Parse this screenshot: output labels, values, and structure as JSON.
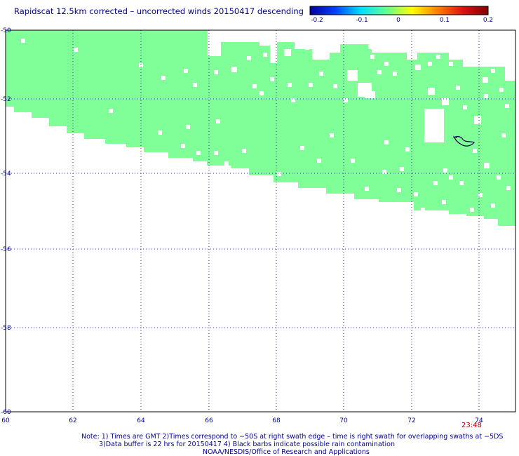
{
  "title": "Rapidscat 12.5km corrected – uncorrected winds 20150417 descending",
  "colorbar": {
    "ticks": [
      "-0.2",
      "-0.1",
      "0",
      "0.1",
      "0.2"
    ],
    "stops": [
      "#0000a0",
      "#0040ff",
      "#00e0ff",
      "#60ff90",
      "#ffff00",
      "#ff8000",
      "#e01010",
      "#800000"
    ]
  },
  "lat_labels": [
    "-50",
    "-52",
    "-54",
    "-56",
    "-58",
    "-60"
  ],
  "lon_labels": [
    "60",
    "62",
    "64",
    "66",
    "68",
    "70",
    "72",
    "74"
  ],
  "swath_color": "#80ff98",
  "swath_time": "23:48",
  "notes": [
    "Note: 1) Times are GMT 2)Times correspond to −50S at right swath edge – time is right swath for overlapping swaths at −5DS",
    "3)Data buffer is 22 hrs for 20150417 4) Black barbs indicate possible rain contamination",
    "NOAA/NESDIS/Office of Research and Applications"
  ]
}
